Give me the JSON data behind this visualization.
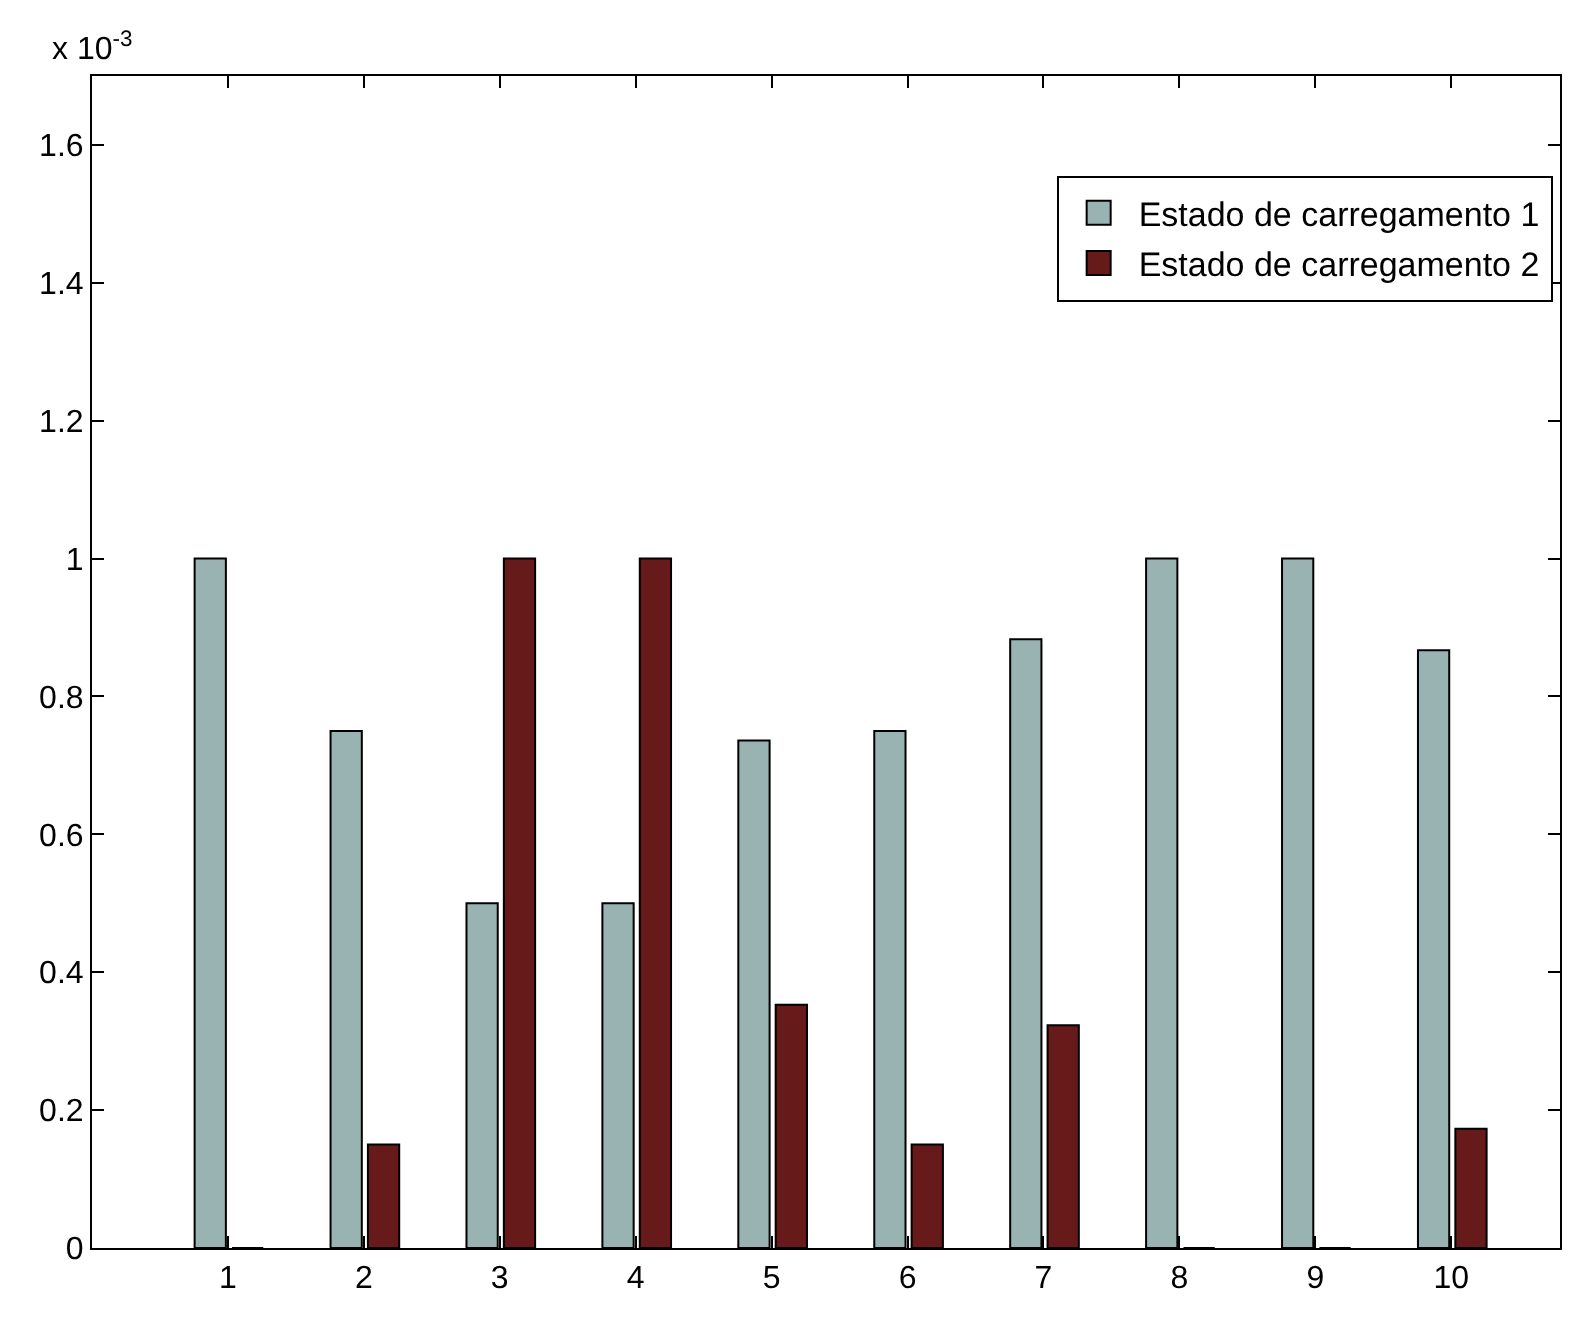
{
  "chart_data": {
    "type": "bar",
    "x": [
      1,
      2,
      3,
      4,
      5,
      6,
      7,
      8,
      9,
      10
    ],
    "series": [
      {
        "name": "Estado de carregamento 1",
        "color": "#99b3b3",
        "values": [
          1,
          0.75,
          0.5,
          0.5,
          0.736,
          0.75,
          0.883,
          1,
          1,
          0.867
        ]
      },
      {
        "name": "Estado de carregamento 2",
        "color": "#661a1a",
        "values": [
          0,
          0.15,
          1,
          1,
          0.353,
          0.15,
          0.323,
          0,
          0,
          0.173
        ]
      }
    ],
    "xlim": [
      0,
      10.8
    ],
    "xticks": [
      1,
      2,
      3,
      4,
      5,
      6,
      7,
      8,
      9,
      10
    ],
    "ylim": [
      0,
      1.7
    ],
    "yticks": [
      0,
      0.2,
      0.4,
      0.6,
      0.8,
      1,
      1.2,
      1.4,
      1.6
    ],
    "annotations": [
      "x 10$^{-3}$"
    ],
    "legend": "top right"
  }
}
